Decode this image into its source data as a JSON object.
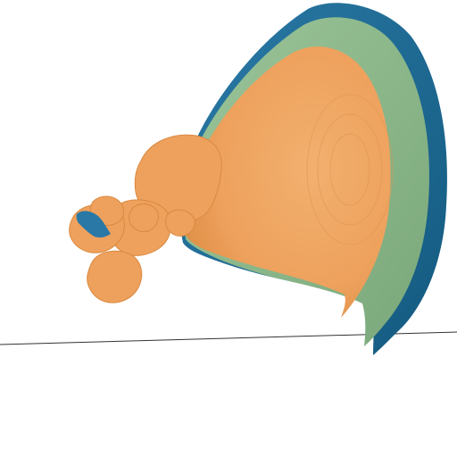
{
  "viewport": {
    "background": "#ffffff"
  },
  "render": {
    "layers": [
      {
        "name": "outer-shell",
        "color": "#1a6a93"
      },
      {
        "name": "middle-shell",
        "color": "#8fb78c"
      },
      {
        "name": "inner-surface",
        "color": "#eea15d"
      },
      {
        "name": "inner-highlight",
        "color": "#f2b06f"
      },
      {
        "name": "small-blue-patch",
        "color": "#2a78a6"
      }
    ],
    "ground_line_color": "#333333"
  }
}
